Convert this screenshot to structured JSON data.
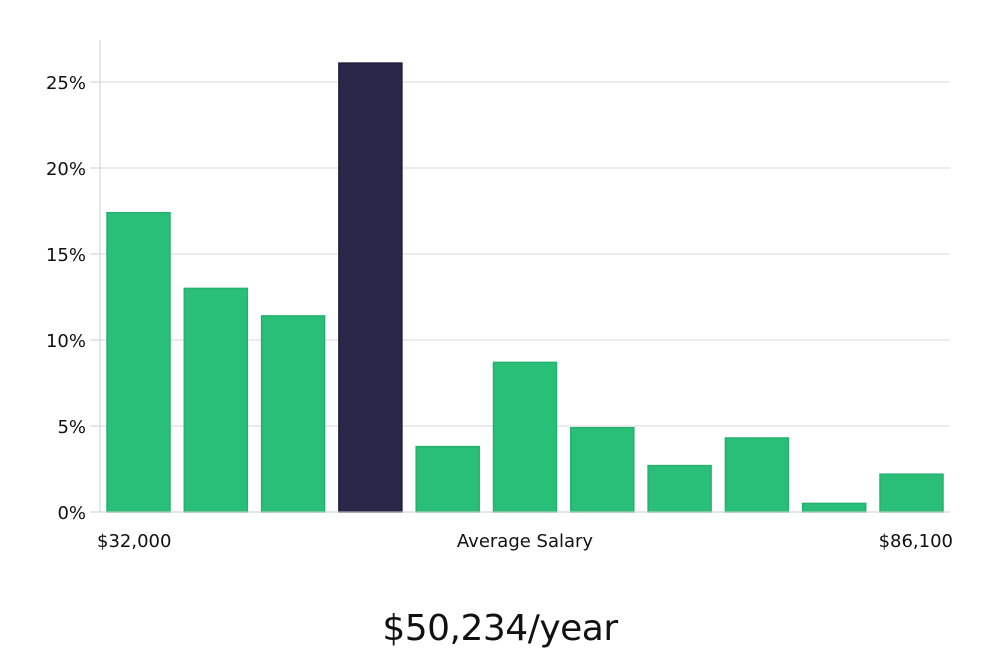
{
  "chart_data": {
    "type": "bar",
    "categories": [
      "1",
      "2",
      "3",
      "4",
      "5",
      "6",
      "7",
      "8",
      "9",
      "10",
      "11"
    ],
    "values": [
      17.4,
      13.0,
      11.4,
      26.1,
      3.8,
      8.7,
      4.9,
      2.7,
      4.3,
      0.5,
      2.2
    ],
    "highlight_index": 3,
    "ylim": [
      0,
      27.5
    ],
    "yticks": [
      0,
      5,
      10,
      15,
      20,
      25
    ],
    "ytick_labels": [
      "0%",
      "5%",
      "10%",
      "15%",
      "20%",
      "25%"
    ],
    "x_min_label": "$32,000",
    "x_max_label": "$86,100",
    "xlabel": "Average Salary",
    "grid": true,
    "colors": {
      "bar": "#2abf78",
      "highlight": "#2a2748",
      "grid": "#d9d9d9",
      "axis": "#cfcfcf"
    }
  },
  "salary_text": "$50,234/year"
}
